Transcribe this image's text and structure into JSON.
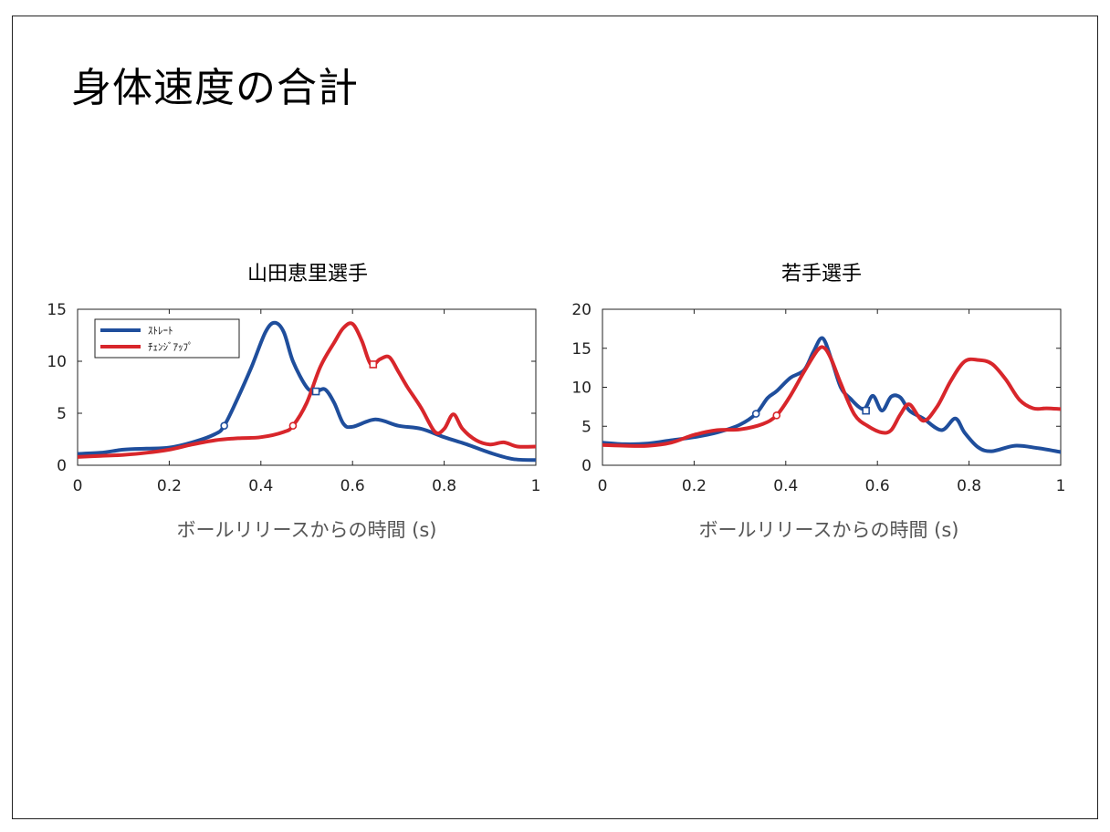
{
  "slide": {
    "title": "身体速度の合計"
  },
  "chart_data": [
    {
      "type": "line",
      "title": "山田恵里選手",
      "xlabel": "ボールリリースからの時間 (s)",
      "ylabel": "",
      "xlim": [
        0,
        1
      ],
      "ylim": [
        0,
        15
      ],
      "xticks": [
        0,
        0.2,
        0.4,
        0.6,
        0.8,
        1
      ],
      "xtick_labels": [
        "0",
        "0.2",
        "0.4",
        "0.6",
        "0.8",
        "1"
      ],
      "yticks": [
        0,
        5,
        10,
        15
      ],
      "ytick_labels": [
        "0",
        "5",
        "10",
        "15"
      ],
      "legend": {
        "placement": "top-left"
      },
      "series": [
        {
          "name": "ｽﾄﾚｰﾄ",
          "color": "#1f4e9c",
          "x": [
            0,
            0.05,
            0.1,
            0.15,
            0.2,
            0.25,
            0.3,
            0.32,
            0.35,
            0.38,
            0.41,
            0.43,
            0.45,
            0.47,
            0.5,
            0.52,
            0.54,
            0.56,
            0.58,
            0.6,
            0.65,
            0.7,
            0.75,
            0.8,
            0.85,
            0.9,
            0.95,
            1.0
          ],
          "y": [
            1.1,
            1.2,
            1.5,
            1.6,
            1.7,
            2.2,
            3.0,
            3.8,
            6.5,
            9.5,
            12.8,
            13.7,
            12.8,
            10.0,
            7.5,
            7.1,
            7.3,
            6.0,
            4.0,
            3.7,
            4.4,
            3.8,
            3.5,
            2.7,
            2.0,
            1.2,
            0.6,
            0.5
          ],
          "markers": [
            {
              "x": 0.32,
              "y": 3.8,
              "shape": "circle"
            },
            {
              "x": 0.52,
              "y": 7.1,
              "shape": "square"
            }
          ]
        },
        {
          "name": "ﾁｪﾝｼﾞｱｯﾌﾟ",
          "color": "#d8262b",
          "x": [
            0,
            0.05,
            0.1,
            0.15,
            0.2,
            0.25,
            0.3,
            0.35,
            0.4,
            0.45,
            0.47,
            0.5,
            0.53,
            0.56,
            0.58,
            0.6,
            0.62,
            0.64,
            0.66,
            0.68,
            0.7,
            0.72,
            0.75,
            0.78,
            0.8,
            0.82,
            0.84,
            0.87,
            0.9,
            0.93,
            0.96,
            1.0
          ],
          "y": [
            0.8,
            0.9,
            1.0,
            1.2,
            1.5,
            2.0,
            2.4,
            2.6,
            2.7,
            3.2,
            3.8,
            6.0,
            9.5,
            11.8,
            13.2,
            13.6,
            12.0,
            9.7,
            10.2,
            10.4,
            9.0,
            7.5,
            5.5,
            3.2,
            3.5,
            4.9,
            3.5,
            2.4,
            2.0,
            2.2,
            1.8,
            1.8
          ],
          "markers": [
            {
              "x": 0.47,
              "y": 3.8,
              "shape": "circle"
            },
            {
              "x": 0.645,
              "y": 9.7,
              "shape": "square"
            }
          ]
        }
      ]
    },
    {
      "type": "line",
      "title": "若手選手",
      "xlabel": "ボールリリースからの時間 (s)",
      "ylabel": "",
      "xlim": [
        0,
        1
      ],
      "ylim": [
        0,
        20
      ],
      "xticks": [
        0,
        0.2,
        0.4,
        0.6,
        0.8,
        1
      ],
      "xtick_labels": [
        "0",
        "0.2",
        "0.4",
        "0.6",
        "0.8",
        "1"
      ],
      "yticks": [
        0,
        5,
        10,
        15,
        20
      ],
      "ytick_labels": [
        "0",
        "5",
        "10",
        "15",
        "20"
      ],
      "series": [
        {
          "name": "",
          "color": "#1f4e9c",
          "x": [
            0,
            0.05,
            0.1,
            0.15,
            0.2,
            0.25,
            0.3,
            0.335,
            0.36,
            0.38,
            0.41,
            0.44,
            0.46,
            0.48,
            0.5,
            0.52,
            0.54,
            0.57,
            0.59,
            0.61,
            0.63,
            0.65,
            0.67,
            0.7,
            0.74,
            0.77,
            0.79,
            0.82,
            0.85,
            0.9,
            0.95,
            1.0
          ],
          "y": [
            2.9,
            2.7,
            2.8,
            3.2,
            3.6,
            4.2,
            5.2,
            6.6,
            8.6,
            9.5,
            11.2,
            12.2,
            14.5,
            16.3,
            13.5,
            10.0,
            8.6,
            7.2,
            8.9,
            7.0,
            8.8,
            8.7,
            7.0,
            6.0,
            4.5,
            6.0,
            4.2,
            2.3,
            1.8,
            2.5,
            2.2,
            1.7
          ],
          "markers": [
            {
              "x": 0.335,
              "y": 6.6,
              "shape": "circle"
            },
            {
              "x": 0.575,
              "y": 7.0,
              "shape": "square"
            }
          ]
        },
        {
          "name": "",
          "color": "#d8262b",
          "x": [
            0,
            0.05,
            0.1,
            0.15,
            0.2,
            0.25,
            0.3,
            0.35,
            0.38,
            0.41,
            0.44,
            0.47,
            0.485,
            0.5,
            0.52,
            0.55,
            0.58,
            0.61,
            0.63,
            0.65,
            0.67,
            0.7,
            0.73,
            0.76,
            0.79,
            0.82,
            0.85,
            0.88,
            0.91,
            0.94,
            0.97,
            1.0
          ],
          "y": [
            2.6,
            2.5,
            2.5,
            2.9,
            3.9,
            4.5,
            4.6,
            5.3,
            6.4,
            8.9,
            12.0,
            14.8,
            15.0,
            13.5,
            10.5,
            6.5,
            5.0,
            4.2,
            4.5,
            6.5,
            7.8,
            5.7,
            7.5,
            10.8,
            13.3,
            13.5,
            13.0,
            11.0,
            8.4,
            7.3,
            7.3,
            7.2
          ],
          "markers": [
            {
              "x": 0.38,
              "y": 6.4,
              "shape": "circle"
            }
          ]
        }
      ]
    }
  ]
}
